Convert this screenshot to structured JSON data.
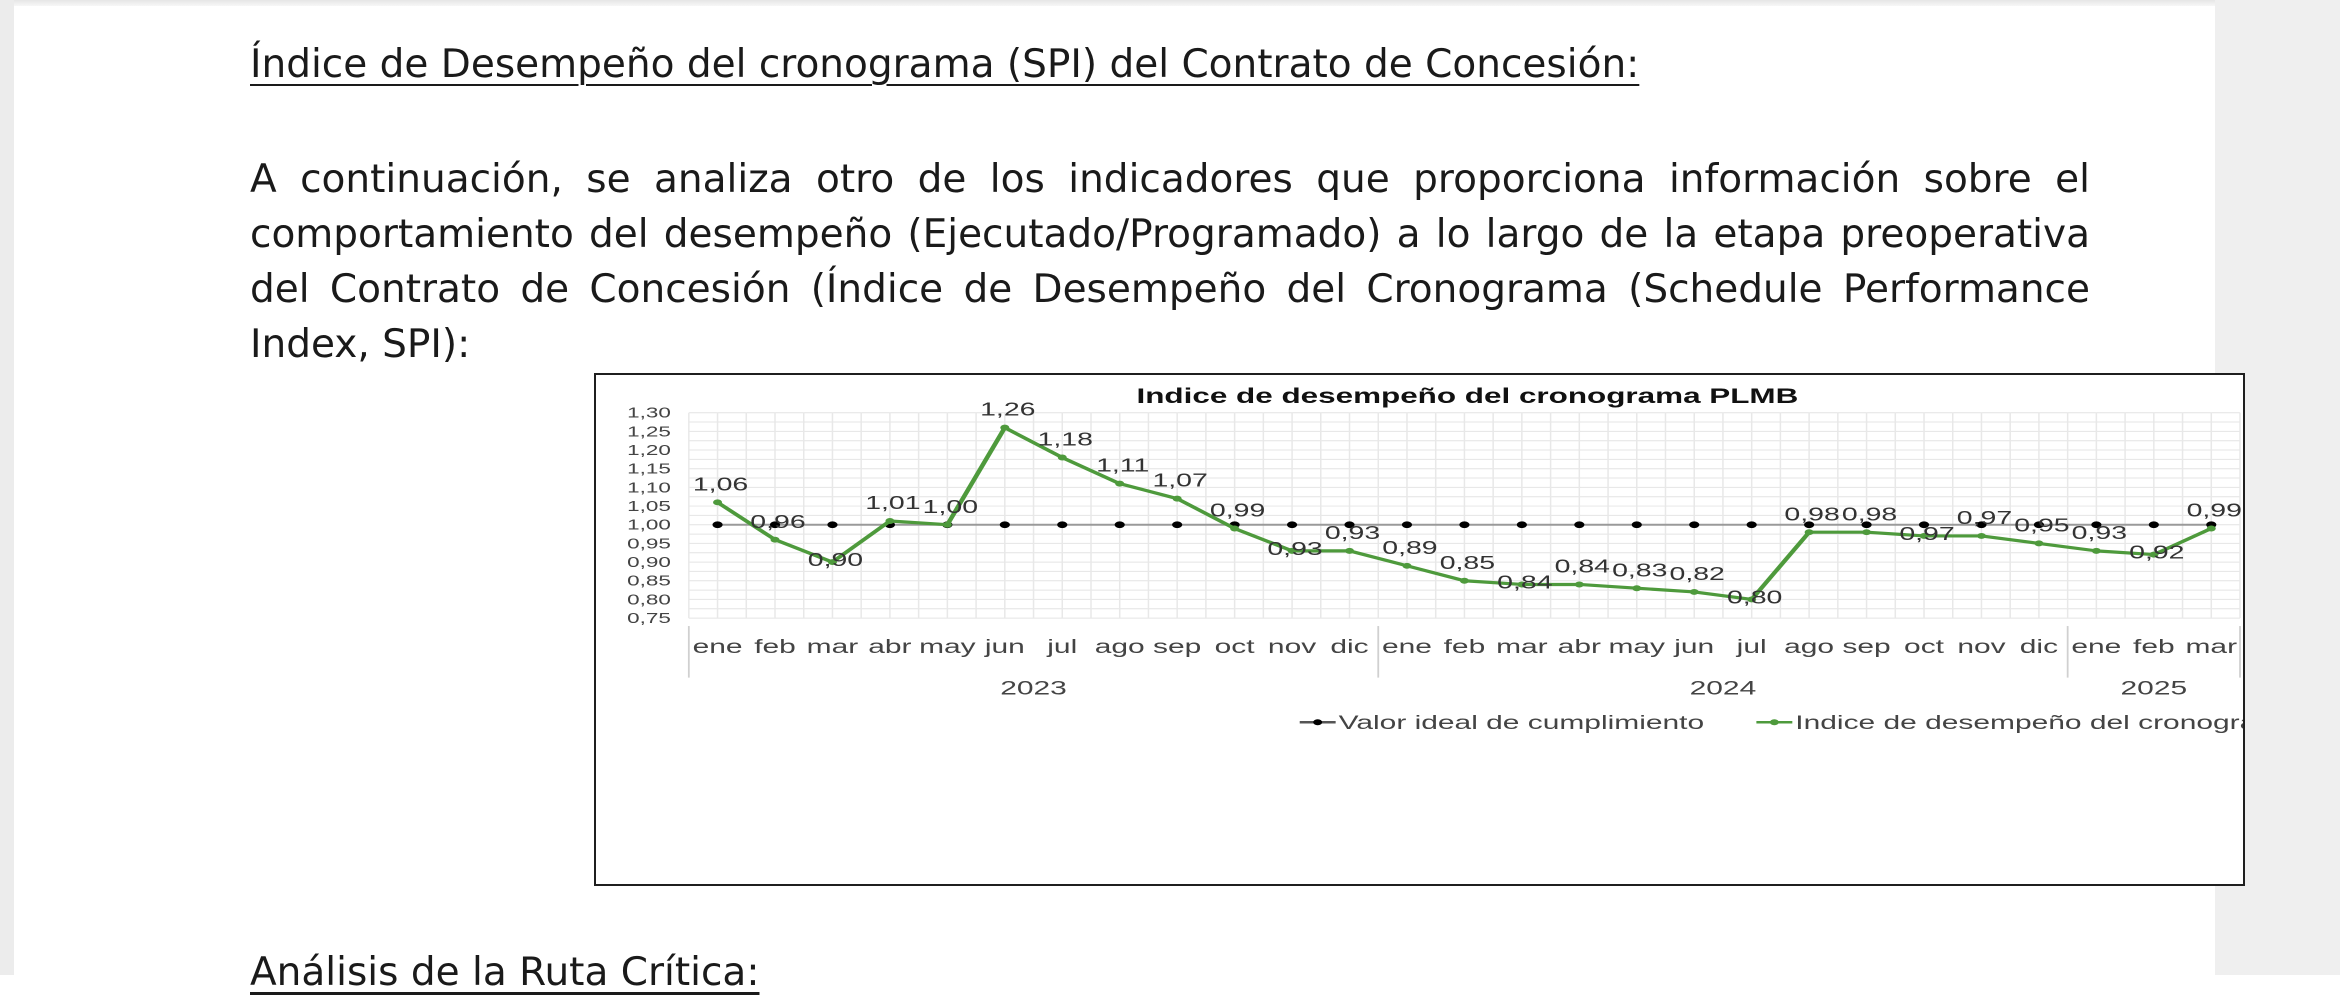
{
  "document": {
    "heading": "Índice de Desempeño del cronograma (SPI) del Contrato de Concesión:",
    "paragraph": "A continuación, se analiza otro de los indicadores que proporciona información sobre el comportamiento del desempeño (Ejecutado/Programado) a lo largo de la etapa preoperativa del Contrato de Concesión (Índice de Desempeño del Cronograma (Schedule Performance Index, SPI):",
    "next_heading": "Análisis de la Ruta Crítica:"
  },
  "chart_data": {
    "type": "line",
    "title": "Indice de desempeño del cronograma PLMB",
    "categories": [
      "ene",
      "feb",
      "mar",
      "abr",
      "may",
      "jun",
      "jul",
      "ago",
      "sep",
      "oct",
      "nov",
      "dic",
      "ene",
      "feb",
      "mar",
      "abr",
      "may",
      "jun",
      "jul",
      "ago",
      "sep",
      "oct",
      "nov",
      "dic",
      "ene",
      "feb",
      "mar"
    ],
    "year_groups": [
      {
        "label": "2023",
        "count": 12
      },
      {
        "label": "2024",
        "count": 12
      },
      {
        "label": "2025",
        "count": 3
      }
    ],
    "y_ticks": [
      "0,75",
      "0,80",
      "0,85",
      "0,90",
      "0,95",
      "1,00",
      "1,05",
      "1,10",
      "1,15",
      "1,20",
      "1,25",
      "1,30"
    ],
    "ylim": [
      0.75,
      1.3
    ],
    "grid": true,
    "legend_position": "bottom",
    "series": [
      {
        "name": "Valor ideal de cumplimiento",
        "color": "#000000",
        "values": [
          1,
          1,
          1,
          1,
          1,
          1,
          1,
          1,
          1,
          1,
          1,
          1,
          1,
          1,
          1,
          1,
          1,
          1,
          1,
          1,
          1,
          1,
          1,
          1,
          1,
          1,
          1
        ]
      },
      {
        "name": "Indice de desempeño del cronograma",
        "color": "#4e9a3c",
        "values": [
          1.06,
          0.96,
          0.9,
          1.01,
          1.0,
          1.26,
          1.18,
          1.11,
          1.07,
          0.99,
          0.93,
          0.93,
          0.89,
          0.85,
          0.84,
          0.84,
          0.83,
          0.82,
          0.8,
          0.98,
          0.98,
          0.97,
          0.97,
          0.95,
          0.93,
          0.92,
          0.99
        ],
        "labels": [
          "1,06",
          "0,96",
          "0,90",
          "1,01",
          "1,00",
          "1,26",
          "1,18",
          "1,11",
          "1,07",
          "0,99",
          "0,93",
          "0,93",
          "0,89",
          "0,85",
          "0,84",
          "0,84",
          "0,83",
          "0,82",
          "0,80",
          "0,98",
          "0,98",
          "0,97",
          "0,97",
          "0,95",
          "0,93",
          "0,92",
          "0,99"
        ]
      }
    ]
  }
}
